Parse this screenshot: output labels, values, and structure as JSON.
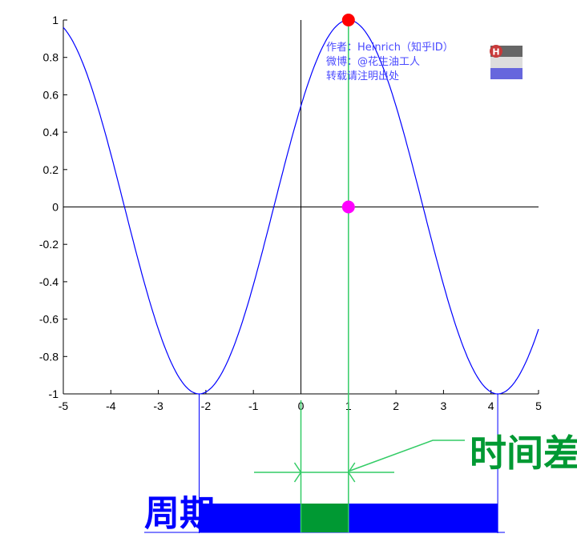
{
  "chart_data": {
    "type": "line",
    "function": "cos(x-1)",
    "xlim": [
      -5,
      5
    ],
    "ylim": [
      -1,
      1
    ],
    "xticks": [
      -5,
      -4,
      -3,
      -2,
      -1,
      0,
      1,
      2,
      3,
      4,
      5
    ],
    "yticks": [
      1,
      0.8,
      0.6,
      0.4,
      0.2,
      0,
      -0.2,
      -0.4,
      -0.6,
      -0.8,
      -1
    ],
    "grid": false,
    "series": [
      {
        "color": "#0000ff"
      }
    ],
    "points": [
      {
        "x": 1,
        "y": 1,
        "color": "#ff0000"
      },
      {
        "x": 1,
        "y": 0,
        "color": "#ff00ff"
      }
    ],
    "period_range": [
      -2.1416,
      4.1416
    ],
    "time_diff_range": [
      0,
      1
    ],
    "annotations": {
      "period": "周期",
      "time_diff": "时间差"
    }
  },
  "watermark": {
    "line1": "作者：Heinrich（知乎ID）",
    "line2": "微博：@花生油工人",
    "line3": "转载请注明出处",
    "logo_letter": "H"
  },
  "colors": {
    "curve": "#0000ff",
    "period": "#0000ff",
    "time_diff": "#009933",
    "guide": "#33cc66"
  }
}
